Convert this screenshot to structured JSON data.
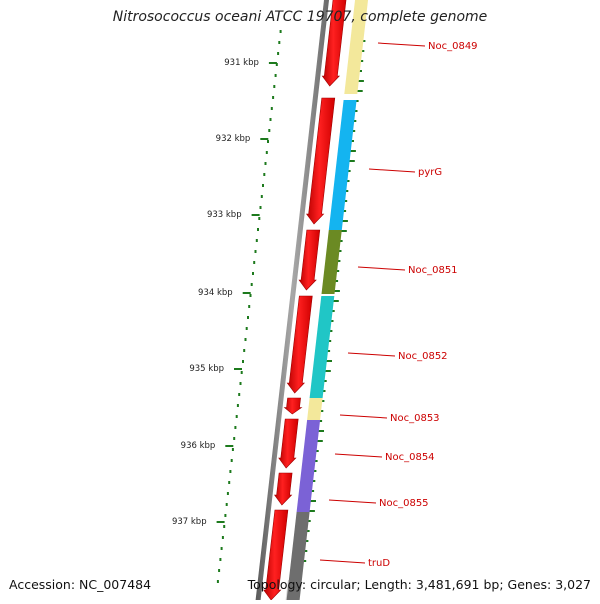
{
  "title": "Nitrosococcus oceani ATCC 19707, complete genome",
  "footer": {
    "accession": "Accession: NC_007484",
    "topology": "Topology: circular; Length: 3,481,691 bp; Genes: 3,027"
  },
  "ticks": [
    {
      "label": "931 kbp"
    },
    {
      "label": "932 kbp"
    },
    {
      "label": "933 kbp"
    },
    {
      "label": "934 kbp"
    },
    {
      "label": "935 kbp"
    },
    {
      "label": "936 kbp"
    },
    {
      "label": "937 kbp"
    }
  ],
  "genes": [
    {
      "label": "Noc_0849",
      "color": "#f3e89b"
    },
    {
      "label": "pyrG",
      "color": "#14b4f0"
    },
    {
      "label": "Noc_0851",
      "color": "#6b8a23"
    },
    {
      "label": "Noc_0852",
      "color": "#20c6c6"
    },
    {
      "label": "Noc_0853",
      "color": "#f3e89b"
    },
    {
      "label": "Noc_0854",
      "color": "#7b62d6"
    },
    {
      "label": "Noc_0855",
      "color": "#7b62d6"
    },
    {
      "label": "truD",
      "color": "#6e6e6e"
    }
  ],
  "colors": {
    "cds": "#f20000",
    "label": "#cc0000",
    "backbone": "#8a8a8a",
    "gc": "#1d7a1d"
  }
}
